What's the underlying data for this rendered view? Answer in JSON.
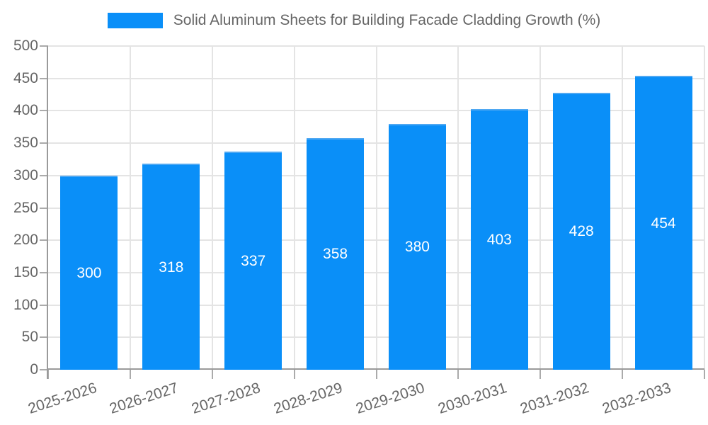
{
  "chart_data": {
    "type": "bar",
    "title": "Solid Aluminum Sheets for Building Facade Cladding Growth (%)",
    "legend_entries": [
      "Solid Aluminum Sheets for Building Facade Cladding Growth (%)"
    ],
    "legend_position": "top",
    "categories": [
      "2025-2026",
      "2026-2027",
      "2027-2028",
      "2028-2029",
      "2029-2030",
      "2030-2031",
      "2031-2032",
      "2032-2033"
    ],
    "series": [
      {
        "name": "Solid Aluminum Sheets for Building Facade Cladding Growth (%)",
        "values": [
          300,
          318,
          337,
          358,
          380,
          403,
          428,
          454
        ]
      }
    ],
    "value_labels": [
      "300",
      "318",
      "337",
      "358",
      "380",
      "403",
      "428",
      "454"
    ],
    "xlabel": "",
    "ylabel": "",
    "ylim": [
      0,
      500
    ],
    "ytick_step": 50,
    "yticks": [
      0,
      50,
      100,
      150,
      200,
      250,
      300,
      350,
      400,
      450,
      500
    ],
    "grid": true,
    "colors": {
      "bar_fill": "#0a8ff8",
      "bar_border_top": "#4fa8f2",
      "bar_label": "#ffffff",
      "axis_text": "#666666",
      "gridline": "#e4e4e4",
      "axis_line": "#9a9a9a",
      "tick_mark": "#ababab",
      "background": "#ffffff"
    }
  }
}
